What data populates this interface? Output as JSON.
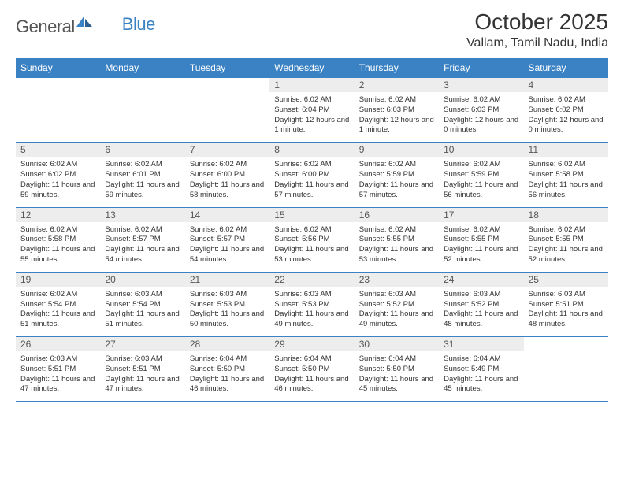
{
  "logo": {
    "text1": "General",
    "text2": "Blue"
  },
  "title": "October 2025",
  "location": "Vallam, Tamil Nadu, India",
  "weekdays": [
    "Sunday",
    "Monday",
    "Tuesday",
    "Wednesday",
    "Thursday",
    "Friday",
    "Saturday"
  ],
  "colors": {
    "header_bg": "#3b82c4",
    "daynum_bg": "#ededed",
    "text": "#333333",
    "page_bg": "#ffffff"
  },
  "weeks": [
    [
      {
        "n": "",
        "sunrise": "",
        "sunset": "",
        "daylight": ""
      },
      {
        "n": "",
        "sunrise": "",
        "sunset": "",
        "daylight": ""
      },
      {
        "n": "",
        "sunrise": "",
        "sunset": "",
        "daylight": ""
      },
      {
        "n": "1",
        "sunrise": "6:02 AM",
        "sunset": "6:04 PM",
        "daylight": "12 hours and 1 minute."
      },
      {
        "n": "2",
        "sunrise": "6:02 AM",
        "sunset": "6:03 PM",
        "daylight": "12 hours and 1 minute."
      },
      {
        "n": "3",
        "sunrise": "6:02 AM",
        "sunset": "6:03 PM",
        "daylight": "12 hours and 0 minutes."
      },
      {
        "n": "4",
        "sunrise": "6:02 AM",
        "sunset": "6:02 PM",
        "daylight": "12 hours and 0 minutes."
      }
    ],
    [
      {
        "n": "5",
        "sunrise": "6:02 AM",
        "sunset": "6:02 PM",
        "daylight": "11 hours and 59 minutes."
      },
      {
        "n": "6",
        "sunrise": "6:02 AM",
        "sunset": "6:01 PM",
        "daylight": "11 hours and 59 minutes."
      },
      {
        "n": "7",
        "sunrise": "6:02 AM",
        "sunset": "6:00 PM",
        "daylight": "11 hours and 58 minutes."
      },
      {
        "n": "8",
        "sunrise": "6:02 AM",
        "sunset": "6:00 PM",
        "daylight": "11 hours and 57 minutes."
      },
      {
        "n": "9",
        "sunrise": "6:02 AM",
        "sunset": "5:59 PM",
        "daylight": "11 hours and 57 minutes."
      },
      {
        "n": "10",
        "sunrise": "6:02 AM",
        "sunset": "5:59 PM",
        "daylight": "11 hours and 56 minutes."
      },
      {
        "n": "11",
        "sunrise": "6:02 AM",
        "sunset": "5:58 PM",
        "daylight": "11 hours and 56 minutes."
      }
    ],
    [
      {
        "n": "12",
        "sunrise": "6:02 AM",
        "sunset": "5:58 PM",
        "daylight": "11 hours and 55 minutes."
      },
      {
        "n": "13",
        "sunrise": "6:02 AM",
        "sunset": "5:57 PM",
        "daylight": "11 hours and 54 minutes."
      },
      {
        "n": "14",
        "sunrise": "6:02 AM",
        "sunset": "5:57 PM",
        "daylight": "11 hours and 54 minutes."
      },
      {
        "n": "15",
        "sunrise": "6:02 AM",
        "sunset": "5:56 PM",
        "daylight": "11 hours and 53 minutes."
      },
      {
        "n": "16",
        "sunrise": "6:02 AM",
        "sunset": "5:55 PM",
        "daylight": "11 hours and 53 minutes."
      },
      {
        "n": "17",
        "sunrise": "6:02 AM",
        "sunset": "5:55 PM",
        "daylight": "11 hours and 52 minutes."
      },
      {
        "n": "18",
        "sunrise": "6:02 AM",
        "sunset": "5:55 PM",
        "daylight": "11 hours and 52 minutes."
      }
    ],
    [
      {
        "n": "19",
        "sunrise": "6:02 AM",
        "sunset": "5:54 PM",
        "daylight": "11 hours and 51 minutes."
      },
      {
        "n": "20",
        "sunrise": "6:03 AM",
        "sunset": "5:54 PM",
        "daylight": "11 hours and 51 minutes."
      },
      {
        "n": "21",
        "sunrise": "6:03 AM",
        "sunset": "5:53 PM",
        "daylight": "11 hours and 50 minutes."
      },
      {
        "n": "22",
        "sunrise": "6:03 AM",
        "sunset": "5:53 PM",
        "daylight": "11 hours and 49 minutes."
      },
      {
        "n": "23",
        "sunrise": "6:03 AM",
        "sunset": "5:52 PM",
        "daylight": "11 hours and 49 minutes."
      },
      {
        "n": "24",
        "sunrise": "6:03 AM",
        "sunset": "5:52 PM",
        "daylight": "11 hours and 48 minutes."
      },
      {
        "n": "25",
        "sunrise": "6:03 AM",
        "sunset": "5:51 PM",
        "daylight": "11 hours and 48 minutes."
      }
    ],
    [
      {
        "n": "26",
        "sunrise": "6:03 AM",
        "sunset": "5:51 PM",
        "daylight": "11 hours and 47 minutes."
      },
      {
        "n": "27",
        "sunrise": "6:03 AM",
        "sunset": "5:51 PM",
        "daylight": "11 hours and 47 minutes."
      },
      {
        "n": "28",
        "sunrise": "6:04 AM",
        "sunset": "5:50 PM",
        "daylight": "11 hours and 46 minutes."
      },
      {
        "n": "29",
        "sunrise": "6:04 AM",
        "sunset": "5:50 PM",
        "daylight": "11 hours and 46 minutes."
      },
      {
        "n": "30",
        "sunrise": "6:04 AM",
        "sunset": "5:50 PM",
        "daylight": "11 hours and 45 minutes."
      },
      {
        "n": "31",
        "sunrise": "6:04 AM",
        "sunset": "5:49 PM",
        "daylight": "11 hours and 45 minutes."
      },
      {
        "n": "",
        "sunrise": "",
        "sunset": "",
        "daylight": ""
      }
    ]
  ],
  "labels": {
    "sunrise": "Sunrise:",
    "sunset": "Sunset:",
    "daylight": "Daylight:"
  }
}
